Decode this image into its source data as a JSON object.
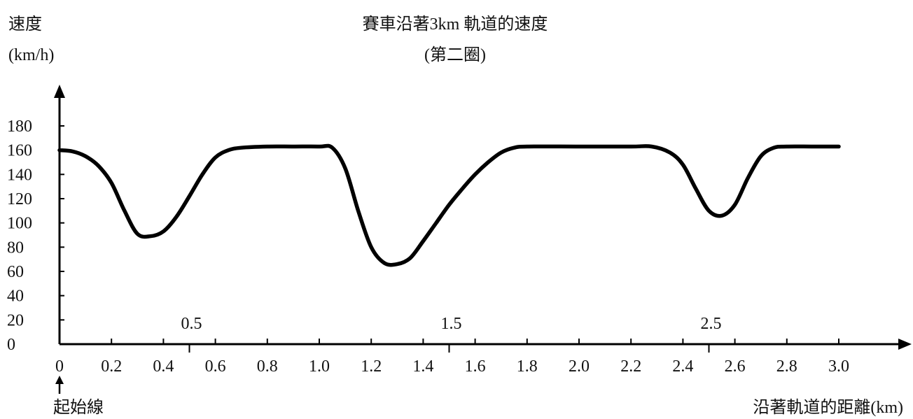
{
  "chart_data": {
    "type": "line",
    "title": "賽車沿著3km 軌道的速度",
    "subtitle": "(第二圈)",
    "ylabel_line1": "速度",
    "ylabel_line2": "(km/h)",
    "xlabel": "沿著軌道的距離(km)",
    "start_label": "起始線",
    "xlim": [
      0,
      3.0
    ],
    "ylim": [
      0,
      180
    ],
    "x_ticks": [
      0,
      0.2,
      0.4,
      0.6,
      0.8,
      1.0,
      1.2,
      1.4,
      1.6,
      1.8,
      2.0,
      2.2,
      2.4,
      2.6,
      2.8,
      3.0
    ],
    "x_tick_labels": [
      "0",
      "0.2",
      "0.4",
      "0.6",
      "0.8",
      "1.0",
      "1.2",
      "1.4",
      "1.6",
      "1.8",
      "2.0",
      "2.2",
      "2.4",
      "2.6",
      "2.8",
      "3.0"
    ],
    "x_mid_ticks": [
      0.5,
      1.5,
      2.5
    ],
    "x_mid_labels": [
      "0.5",
      "1.5",
      "2.5"
    ],
    "y_ticks": [
      0,
      20,
      40,
      60,
      80,
      100,
      120,
      140,
      160,
      180
    ],
    "y_tick_labels": [
      "0",
      "20",
      "40",
      "60",
      "80",
      "100",
      "120",
      "140",
      "160",
      "180"
    ],
    "grid": false,
    "series": [
      {
        "x": [
          0,
          0.05,
          0.1,
          0.15,
          0.2,
          0.25,
          0.3,
          0.35,
          0.4,
          0.45,
          0.5,
          0.55,
          0.6,
          0.65,
          0.7,
          0.8,
          0.9,
          1.0,
          1.05,
          1.1,
          1.15,
          1.2,
          1.25,
          1.3,
          1.35,
          1.4,
          1.45,
          1.5,
          1.55,
          1.6,
          1.65,
          1.7,
          1.75,
          1.8,
          2.0,
          2.2,
          2.28,
          2.35,
          2.4,
          2.45,
          2.5,
          2.55,
          2.6,
          2.65,
          2.7,
          2.75,
          2.8,
          2.9,
          3.0
        ],
        "values": [
          160,
          159,
          155,
          147,
          133,
          110,
          91,
          89,
          93,
          105,
          122,
          140,
          154,
          160,
          162,
          163,
          163,
          163,
          162,
          145,
          110,
          80,
          67,
          66,
          71,
          85,
          100,
          115,
          128,
          140,
          150,
          158,
          162,
          163,
          163,
          163,
          163,
          158,
          148,
          128,
          110,
          106,
          115,
          137,
          155,
          162,
          163,
          163,
          163
        ]
      }
    ]
  }
}
